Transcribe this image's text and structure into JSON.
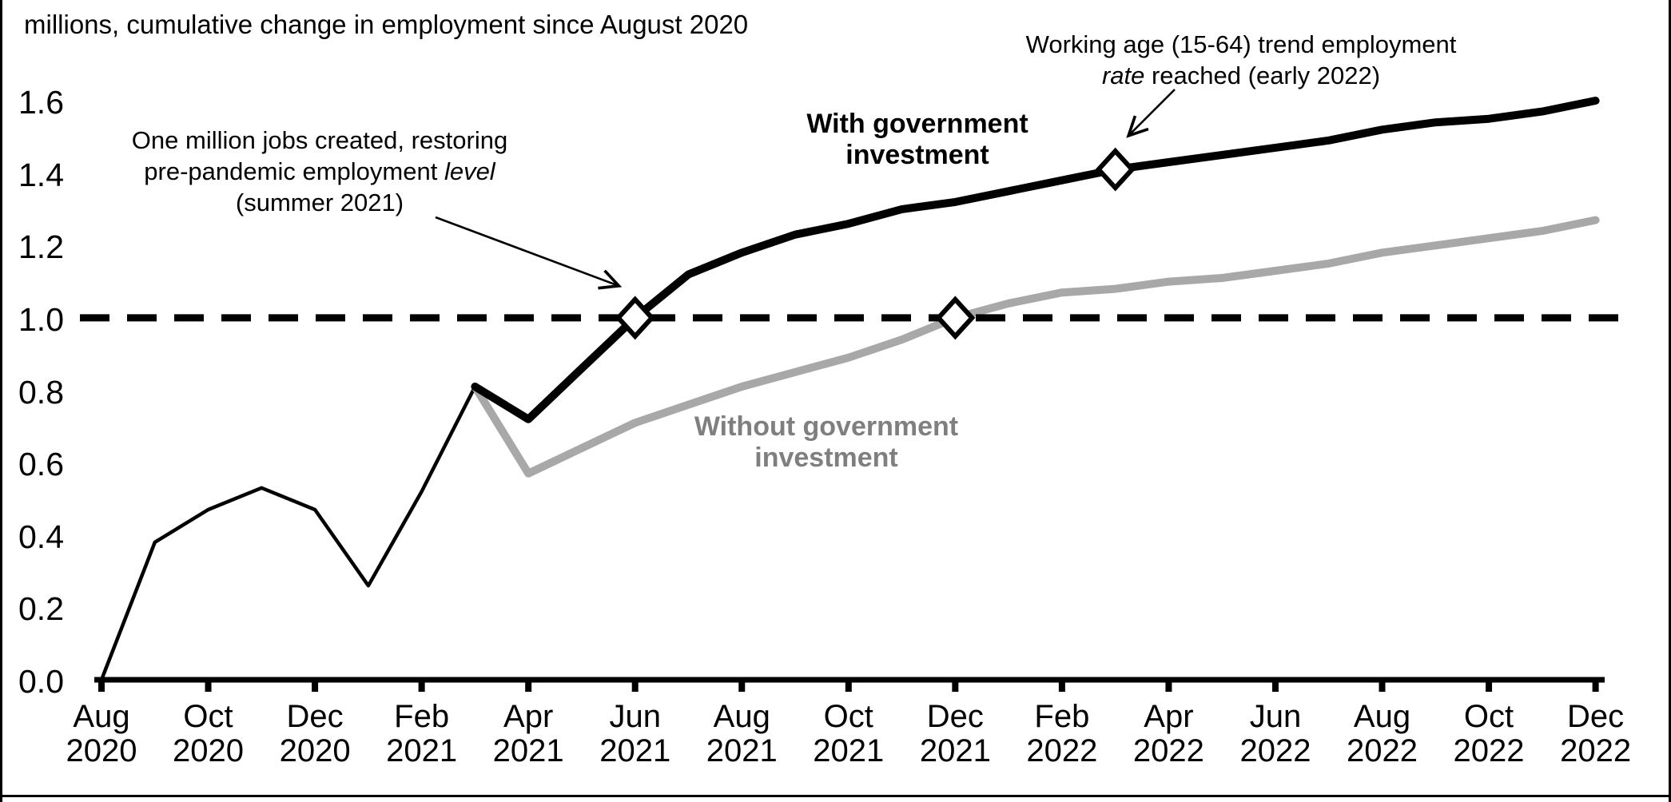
{
  "chart_data": {
    "type": "line",
    "title": "millions, cumulative change in employment since August 2020",
    "ylabel": "millions, cumulative change in employment",
    "ylim": [
      0.0,
      1.6
    ],
    "y_tick_labels": [
      "0.0",
      "0.2",
      "0.4",
      "0.6",
      "0.8",
      "1.0",
      "1.2",
      "1.4",
      "1.6"
    ],
    "x_tick_labels": [
      [
        "Aug",
        "2020"
      ],
      [
        "Oct",
        "2020"
      ],
      [
        "Dec",
        "2020"
      ],
      [
        "Feb",
        "2021"
      ],
      [
        "Apr",
        "2021"
      ],
      [
        "Jun",
        "2021"
      ],
      [
        "Aug",
        "2021"
      ],
      [
        "Oct",
        "2021"
      ],
      [
        "Dec",
        "2021"
      ],
      [
        "Feb",
        "2022"
      ],
      [
        "Apr",
        "2022"
      ],
      [
        "Jun",
        "2022"
      ],
      [
        "Aug",
        "2022"
      ],
      [
        "Oct",
        "2022"
      ],
      [
        "Dec",
        "2022"
      ]
    ],
    "months": [
      "Aug 2020",
      "Sep 2020",
      "Oct 2020",
      "Nov 2020",
      "Dec 2020",
      "Jan 2021",
      "Feb 2021",
      "Mar 2021",
      "Apr 2021",
      "May 2021",
      "Jun 2021",
      "Jul 2021",
      "Aug 2021",
      "Sep 2021",
      "Oct 2021",
      "Nov 2021",
      "Dec 2021",
      "Jan 2022",
      "Feb 2022",
      "Mar 2022",
      "Apr 2022",
      "May 2022",
      "Jun 2022",
      "Jul 2022",
      "Aug 2022",
      "Sep 2022",
      "Oct 2022",
      "Nov 2022",
      "Dec 2022"
    ],
    "split_month_index": 7,
    "series": [
      {
        "name": "With government investment",
        "color": "#000000",
        "values": [
          0.0,
          0.38,
          0.47,
          0.53,
          0.47,
          0.26,
          0.52,
          0.81,
          0.72,
          0.86,
          1.0,
          1.12,
          1.18,
          1.23,
          1.26,
          1.3,
          1.32,
          1.35,
          1.38,
          1.41,
          1.43,
          1.45,
          1.47,
          1.49,
          1.52,
          1.54,
          1.55,
          1.57,
          1.6
        ]
      },
      {
        "name": "Without government investment",
        "color": "#a8a8a8",
        "values": [
          0.0,
          0.38,
          0.47,
          0.53,
          0.47,
          0.26,
          0.52,
          0.81,
          0.57,
          0.64,
          0.71,
          0.76,
          0.81,
          0.85,
          0.89,
          0.94,
          1.0,
          1.04,
          1.07,
          1.08,
          1.1,
          1.11,
          1.13,
          1.15,
          1.18,
          1.2,
          1.22,
          1.24,
          1.27
        ]
      }
    ],
    "reference_line": {
      "value": 1.0,
      "style": "dashed",
      "color": "#000000"
    },
    "markers": [
      {
        "series_index": 0,
        "month_index": 10,
        "month": "Jun 2021",
        "value": 1.0
      },
      {
        "series_index": 1,
        "month_index": 16,
        "month": "Dec 2021",
        "value": 1.0
      },
      {
        "series_index": 0,
        "month_index": 19,
        "month": "Mar 2022",
        "value": 1.41
      }
    ],
    "series_labels": {
      "with": [
        "With government",
        "investment"
      ],
      "without": [
        "Without government",
        "investment"
      ]
    },
    "annotations": {
      "jobs": {
        "line1": "One million jobs created, restoring",
        "line2_pre": "pre-pandemic employment",
        "line2_italic": "level",
        "line3": "(summer 2021)"
      },
      "trend": {
        "line1": "Working age (15-64) trend employment",
        "line2_italic": "rate",
        "line2_post": "reached (early 2022)"
      }
    },
    "legend_position": "inline-labels",
    "grid": false
  },
  "page": {
    "background": "#ffffff",
    "border_color": "#000000"
  }
}
